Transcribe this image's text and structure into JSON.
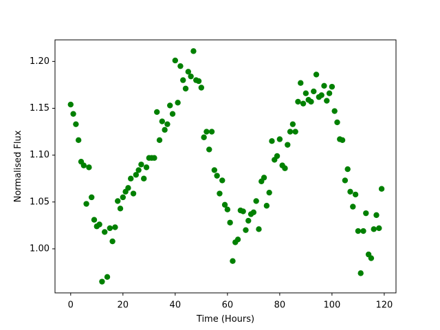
{
  "chart_data": {
    "type": "scatter",
    "x_label": "Time (Hours)",
    "y_label": "Normalised Flux",
    "x": [
      0,
      1,
      2,
      3,
      4,
      5,
      6,
      7,
      8,
      9,
      10,
      11,
      12,
      13,
      14,
      15,
      16,
      17,
      18,
      19,
      20,
      21,
      22,
      23,
      24,
      25,
      26,
      27,
      28,
      29,
      30,
      31,
      32,
      33,
      34,
      35,
      36,
      37,
      38,
      39,
      40,
      41,
      42,
      43,
      44,
      45,
      46,
      47,
      48,
      49,
      50,
      51,
      52,
      53,
      54,
      55,
      56,
      57,
      58,
      59,
      60,
      61,
      62,
      63,
      64,
      65,
      66,
      67,
      68,
      69,
      70,
      71,
      72,
      73,
      74,
      75,
      76,
      77,
      78,
      79,
      80,
      81,
      82,
      83,
      84,
      85,
      86,
      87,
      88,
      89,
      90,
      91,
      92,
      93,
      94,
      95,
      96,
      97,
      98,
      99,
      100,
      101,
      102,
      103,
      104,
      105,
      106,
      107,
      108,
      109,
      110,
      111,
      112,
      113,
      114,
      115,
      116,
      117,
      118,
      119
    ],
    "series": [
      {
        "color": "green",
        "values": [
          1.154,
          1.144,
          1.133,
          1.116,
          1.093,
          1.089,
          1.048,
          1.087,
          1.055,
          1.031,
          1.024,
          1.026,
          0.965,
          1.018,
          0.97,
          1.022,
          1.008,
          1.023,
          1.051,
          1.043,
          1.055,
          1.061,
          1.065,
          1.075,
          1.059,
          1.079,
          1.084,
          1.09,
          1.075,
          1.087,
          1.097,
          1.097,
          1.097,
          1.146,
          1.116,
          1.136,
          1.127,
          1.133,
          1.153,
          1.144,
          1.201,
          1.156,
          1.195,
          1.18,
          1.171,
          1.189,
          1.184,
          1.211,
          1.18,
          1.179,
          1.172,
          1.119,
          1.125,
          1.106,
          1.125,
          1.084,
          1.078,
          1.059,
          1.073,
          1.047,
          1.042,
          1.028,
          0.987,
          1.007,
          1.01,
          1.041,
          1.04,
          1.02,
          1.03,
          1.037,
          1.039,
          1.051,
          1.021,
          1.072,
          1.076,
          1.046,
          1.06,
          1.115,
          1.095,
          1.099,
          1.117,
          1.089,
          1.086,
          1.111,
          1.125,
          1.133,
          1.125,
          1.157,
          1.177,
          1.155,
          1.166,
          1.159,
          1.157,
          1.168,
          1.186,
          1.162,
          1.164,
          1.174,
          1.158,
          1.166,
          1.173,
          1.147,
          1.135,
          1.117,
          1.116,
          1.073,
          1.085,
          1.061,
          1.045,
          1.058,
          1.019,
          0.974,
          1.019,
          1.038,
          0.994,
          0.99,
          1.021,
          1.036,
          1.022,
          1.064
        ]
      }
    ],
    "xlim": [
      -6,
      124.5
    ],
    "ylim": [
      0.953,
      1.223
    ],
    "xticks": [
      0,
      20,
      40,
      60,
      80,
      100,
      120
    ],
    "yticks": [
      {
        "value": 1.0,
        "label": "1.00"
      },
      {
        "value": 1.05,
        "label": "1.05"
      },
      {
        "value": 1.1,
        "label": "1.10"
      },
      {
        "value": 1.15,
        "label": "1.15"
      },
      {
        "value": 1.2,
        "label": "1.20"
      }
    ]
  }
}
